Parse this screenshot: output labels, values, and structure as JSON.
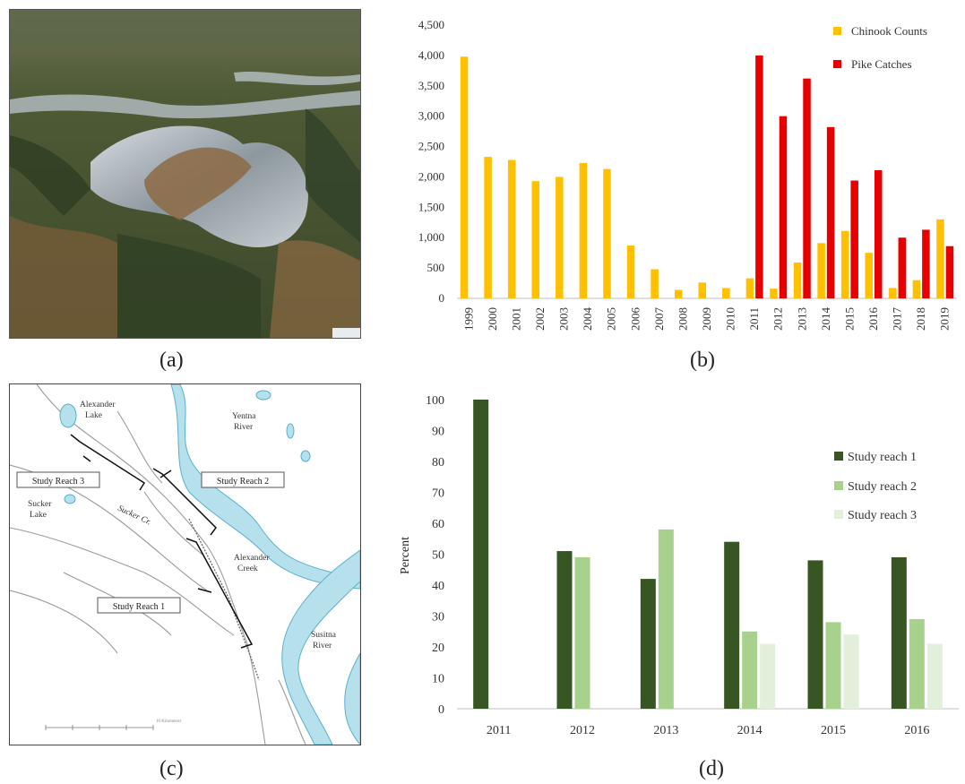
{
  "panel_labels": {
    "a": "(a)",
    "b": "(b)",
    "c": "(c)",
    "d": "(d)"
  },
  "colors": {
    "chinook": "#FFC000",
    "pike": "#E60000",
    "reach1": "#375623",
    "reach2": "#A9D18E",
    "reach3": "#E2EFDA",
    "water": "#B5E0EC",
    "water_edge": "#5AB0CC"
  },
  "map": {
    "labels": {
      "alexander_lake_1": "Alexander",
      "alexander_lake_2": "Lake",
      "yentna_1": "Yentna",
      "yentna_2": "River",
      "sucker_lake_1": "Sucker",
      "sucker_lake_2": "Lake",
      "sucker_creek": "Sucker Cr.",
      "alexander_creek_1": "Alexander",
      "alexander_creek_2": "Creek",
      "susitna_1": "Susitna",
      "susitna_2": "River",
      "scale": "10 Kilometers"
    },
    "boxes": {
      "reach1": "Study Reach 1",
      "reach2": "Study Reach 2",
      "reach3": "Study Reach 3"
    }
  },
  "chart_data": [
    {
      "type": "bar",
      "categories": [
        "1999",
        "2000",
        "2001",
        "2002",
        "2003",
        "2004",
        "2005",
        "2006",
        "2007",
        "2008",
        "2009",
        "2010",
        "2011",
        "2012",
        "2013",
        "2014",
        "2015",
        "2016",
        "2017",
        "2018",
        "2019"
      ],
      "series": [
        {
          "name": "Chinook Counts",
          "values": [
            3980,
            2330,
            2280,
            1930,
            2000,
            2230,
            2130,
            870,
            480,
            140,
            260,
            170,
            330,
            160,
            590,
            910,
            1110,
            750,
            170,
            300,
            1300
          ]
        },
        {
          "name": "Pike Catches",
          "values": [
            null,
            null,
            null,
            null,
            null,
            null,
            null,
            null,
            null,
            null,
            null,
            null,
            4000,
            3000,
            3620,
            2820,
            1940,
            2110,
            1000,
            1130,
            860
          ]
        }
      ],
      "ylim": [
        0,
        4500
      ],
      "yticks": [
        "0",
        "500",
        "1,000",
        "1,500",
        "2,000",
        "2,500",
        "3,000",
        "3,500",
        "4,000",
        "4,500"
      ],
      "legend": "top-right"
    },
    {
      "type": "bar",
      "categories": [
        "2011",
        "2012",
        "2013",
        "2014",
        "2015",
        "2016"
      ],
      "series": [
        {
          "name": "Study reach 1",
          "values": [
            100,
            51,
            42,
            54,
            48,
            49
          ]
        },
        {
          "name": "Study reach 2",
          "values": [
            null,
            49,
            58,
            25,
            28,
            29
          ]
        },
        {
          "name": "Study reach 3",
          "values": [
            null,
            null,
            null,
            21,
            24,
            21
          ]
        }
      ],
      "ylabel": "Percent",
      "ylim": [
        0,
        100
      ],
      "yticks": [
        "0",
        "10",
        "20",
        "30",
        "40",
        "50",
        "60",
        "70",
        "80",
        "90",
        "100"
      ],
      "legend": "right"
    }
  ]
}
